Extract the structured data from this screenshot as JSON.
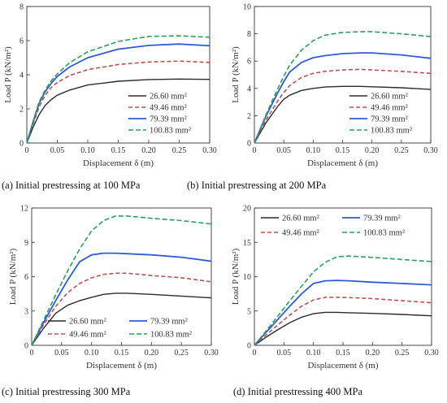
{
  "colors": {
    "s1": "#2b2b2b",
    "s2": "#c0504d",
    "s3": "#2f5cd6",
    "s4": "#2e9e5b"
  },
  "series_names": [
    "26.60 mm²",
    "49.46 mm²",
    "79.39 mm²",
    "100.83 mm²"
  ],
  "chart_data": [
    {
      "type": "line",
      "caption": "(a) Initial prestressing at 100 MPa",
      "xlabel": "Displacement  δ (m)",
      "ylabel": "Load  P (kN/m²)",
      "xlim": [
        0,
        0.3
      ],
      "ylim": [
        0,
        8
      ],
      "xticks": [
        "0",
        "0.05",
        "0.10",
        "0.15",
        "0.20",
        "0.25",
        "0.30"
      ],
      "yticks": [
        "0",
        "2",
        "4",
        "6",
        "8"
      ],
      "legend": "lower-right, single column",
      "x": [
        0,
        0.01,
        0.02,
        0.03,
        0.04,
        0.05,
        0.07,
        0.1,
        0.15,
        0.2,
        0.25,
        0.3
      ],
      "series": [
        {
          "name": "26.60 mm²",
          "values": [
            0,
            0.9,
            1.65,
            2.2,
            2.55,
            2.8,
            3.1,
            3.4,
            3.62,
            3.72,
            3.75,
            3.73
          ]
        },
        {
          "name": "49.46 mm²",
          "values": [
            0,
            1.1,
            2.1,
            2.8,
            3.25,
            3.55,
            3.95,
            4.3,
            4.6,
            4.75,
            4.8,
            4.72
          ]
        },
        {
          "name": "79.39 mm²",
          "values": [
            0,
            1.2,
            2.3,
            3.0,
            3.5,
            3.9,
            4.45,
            5.0,
            5.5,
            5.72,
            5.8,
            5.7
          ]
        },
        {
          "name": "100.83 mm²",
          "values": [
            0,
            1.25,
            2.4,
            3.1,
            3.65,
            4.05,
            4.7,
            5.35,
            5.95,
            6.25,
            6.28,
            6.2
          ]
        }
      ]
    },
    {
      "type": "line",
      "caption": "(b) Initial prestressing at 200 MPa",
      "xlabel": "Displacement  δ (m)",
      "ylabel": "Load  P (kN/m²)",
      "xlim": [
        0,
        0.3
      ],
      "ylim": [
        0,
        10
      ],
      "xticks": [
        "0",
        "0.05",
        "0.10",
        "0.15",
        "0.20",
        "0.25",
        "0.30"
      ],
      "yticks": [
        "0",
        "2",
        "4",
        "6",
        "8",
        "10"
      ],
      "legend": "lower-right, single column",
      "x": [
        0,
        0.02,
        0.04,
        0.05,
        0.06,
        0.08,
        0.1,
        0.12,
        0.15,
        0.18,
        0.2,
        0.25,
        0.3
      ],
      "series": [
        {
          "name": "26.60 mm²",
          "values": [
            0,
            1.5,
            2.7,
            3.2,
            3.5,
            3.85,
            4.0,
            4.1,
            4.15,
            4.15,
            4.12,
            4.05,
            3.92
          ]
        },
        {
          "name": "49.46 mm²",
          "values": [
            0,
            1.7,
            3.1,
            3.7,
            4.2,
            4.8,
            5.1,
            5.25,
            5.35,
            5.4,
            5.35,
            5.25,
            5.1
          ]
        },
        {
          "name": "79.39 mm²",
          "values": [
            0,
            2.0,
            3.7,
            4.5,
            5.2,
            5.9,
            6.25,
            6.4,
            6.55,
            6.6,
            6.6,
            6.45,
            6.2
          ]
        },
        {
          "name": "100.83 mm²",
          "values": [
            0,
            2.1,
            4.0,
            4.9,
            5.7,
            6.8,
            7.5,
            7.9,
            8.1,
            8.15,
            8.15,
            8.0,
            7.8
          ]
        }
      ]
    },
    {
      "type": "line",
      "caption": "(c) Initial prestressing 300 MPa",
      "xlabel": "Displacement  δ (m)",
      "ylabel": "Load  P (kN/m²)",
      "xlim": [
        0,
        0.3
      ],
      "ylim": [
        0,
        12
      ],
      "xticks": [
        "0",
        "0.05",
        "0.10",
        "0.15",
        "0.20",
        "0.25",
        "0.30"
      ],
      "yticks": [
        "0",
        "3",
        "6",
        "9",
        "12"
      ],
      "legend": "bottom, two columns",
      "x": [
        0,
        0.02,
        0.04,
        0.06,
        0.08,
        0.1,
        0.12,
        0.14,
        0.16,
        0.2,
        0.25,
        0.3
      ],
      "series": [
        {
          "name": "26.60 mm²",
          "values": [
            0,
            1.5,
            2.8,
            3.5,
            3.9,
            4.2,
            4.45,
            4.55,
            4.55,
            4.45,
            4.3,
            4.15
          ]
        },
        {
          "name": "49.46 mm²",
          "values": [
            0,
            1.8,
            3.4,
            4.6,
            5.4,
            5.9,
            6.2,
            6.3,
            6.3,
            6.1,
            5.9,
            5.55
          ]
        },
        {
          "name": "79.39 mm²",
          "values": [
            0,
            2.0,
            3.9,
            5.7,
            7.3,
            7.9,
            8.05,
            8.05,
            8.0,
            7.9,
            7.7,
            7.35
          ]
        },
        {
          "name": "100.83 mm²",
          "values": [
            0,
            2.2,
            4.4,
            6.5,
            8.4,
            10.0,
            10.9,
            11.3,
            11.3,
            11.1,
            10.9,
            10.6
          ]
        }
      ]
    },
    {
      "type": "line",
      "caption": "(d) Initial prestressing 400 MPa",
      "xlabel": "Displacement  δ (m)",
      "ylabel": "Load  P (kN/m²)",
      "xlim": [
        0,
        0.3
      ],
      "ylim": [
        0,
        20
      ],
      "xticks": [
        "0",
        "0.05",
        "0.10",
        "0.15",
        "0.20",
        "0.25",
        "0.30"
      ],
      "yticks": [
        "0",
        "5",
        "10",
        "15",
        "20"
      ],
      "legend": "top, two columns",
      "x": [
        0,
        0.02,
        0.04,
        0.06,
        0.08,
        0.1,
        0.12,
        0.14,
        0.16,
        0.2,
        0.25,
        0.3
      ],
      "series": [
        {
          "name": "26.60 mm²",
          "values": [
            0,
            1.2,
            2.3,
            3.3,
            4.1,
            4.6,
            4.8,
            4.8,
            4.75,
            4.65,
            4.5,
            4.3
          ]
        },
        {
          "name": "49.46 mm²",
          "values": [
            0,
            1.5,
            3.0,
            4.4,
            5.7,
            6.6,
            7.0,
            7.0,
            6.95,
            6.8,
            6.5,
            6.2
          ]
        },
        {
          "name": "79.39 mm²",
          "values": [
            0,
            1.9,
            3.8,
            5.7,
            7.5,
            9.0,
            9.4,
            9.45,
            9.4,
            9.2,
            9.0,
            8.8
          ]
        },
        {
          "name": "100.83 mm²",
          "values": [
            0,
            2.1,
            4.3,
            6.5,
            8.6,
            10.7,
            12.1,
            12.9,
            13.0,
            12.8,
            12.5,
            12.2
          ]
        }
      ]
    }
  ]
}
